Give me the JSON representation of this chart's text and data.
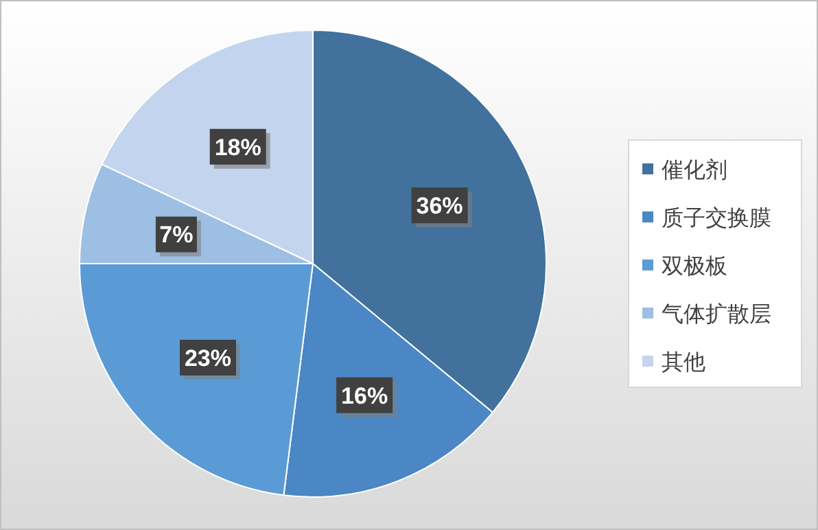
{
  "chart_data": {
    "type": "pie",
    "categories": [
      "催化剂",
      "质子交换膜",
      "双极板",
      "气体扩散层",
      "其他"
    ],
    "values": [
      36,
      16,
      23,
      7,
      18
    ],
    "colors": [
      "#41719c",
      "#4a87c4",
      "#5b9bd5",
      "#9dbfe4",
      "#c3d5ee"
    ],
    "value_labels": [
      "36%",
      "16%",
      "23%",
      "7%",
      "18%"
    ],
    "legend": "right"
  }
}
